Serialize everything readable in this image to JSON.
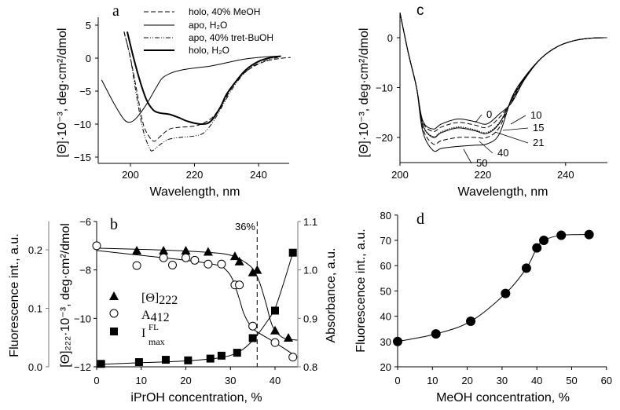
{
  "chart_data": [
    {
      "panel": "a",
      "type": "line",
      "xlabel": "Wavelength, nm",
      "ylabel": "[Θ]·10⁻³, deg·cm²/dmol",
      "xlim": [
        190,
        250
      ],
      "ylim": [
        -16,
        5
      ],
      "xticks": [
        "200",
        "220",
        "240"
      ],
      "yticks": [
        "5",
        "0",
        "−5",
        "−10",
        "−15"
      ],
      "series": [
        {
          "name": "holo, 40% MeOH",
          "style": "dashed",
          "points": [
            [
              198,
              4
            ],
            [
              200,
              0
            ],
            [
              202,
              -5
            ],
            [
              204,
              -10
            ],
            [
              206,
              -12
            ],
            [
              207.5,
              -12.6
            ],
            [
              209,
              -12
            ],
            [
              212,
              -10.8
            ],
            [
              215,
              -10.5
            ],
            [
              220,
              -10.3
            ],
            [
              223,
              -9.8
            ],
            [
              226,
              -8.8
            ],
            [
              229,
              -6.7
            ],
            [
              232,
              -4.2
            ],
            [
              235,
              -2.5
            ],
            [
              238,
              -1.4
            ],
            [
              242,
              -0.5
            ],
            [
              246,
              -0.1
            ],
            [
              250,
              0.1
            ]
          ]
        },
        {
          "name": "apo, H₂O",
          "style": "thin",
          "points": [
            [
              191,
              -3.3
            ],
            [
              195,
              -7
            ],
            [
              198,
              -9.3
            ],
            [
              200,
              -9.7
            ],
            [
              202,
              -9
            ],
            [
              205,
              -7
            ],
            [
              208,
              -4.5
            ],
            [
              210,
              -3
            ],
            [
              213,
              -2.2
            ],
            [
              216,
              -1.8
            ],
            [
              220,
              -1.5
            ],
            [
              225,
              -1.2
            ],
            [
              230,
              -0.7
            ],
            [
              235,
              -0.2
            ],
            [
              240,
              0.1
            ],
            [
              246,
              0.3
            ]
          ]
        },
        {
          "name": "apo, 40% tret-BuOH",
          "style": "dashdotdot",
          "points": [
            [
              198,
              4
            ],
            [
              200,
              0
            ],
            [
              202,
              -6
            ],
            [
              204,
              -11
            ],
            [
              206,
              -13.7
            ],
            [
              207,
              -14
            ],
            [
              209,
              -13.2
            ],
            [
              212,
              -12.3
            ],
            [
              216,
              -12
            ],
            [
              220,
              -11.8
            ],
            [
              223,
              -11.3
            ],
            [
              226,
              -9.5
            ],
            [
              229,
              -7
            ],
            [
              232,
              -4.5
            ],
            [
              235,
              -2.6
            ],
            [
              238,
              -1.3
            ],
            [
              242,
              -0.4
            ],
            [
              246,
              0.1
            ]
          ]
        },
        {
          "name": "holo, H₂O",
          "style": "thick",
          "points": [
            [
              199,
              4
            ],
            [
              201,
              0
            ],
            [
              203,
              -3.5
            ],
            [
              205,
              -6.3
            ],
            [
              207,
              -7.8
            ],
            [
              209,
              -8.3
            ],
            [
              212,
              -8.5
            ],
            [
              215,
              -9
            ],
            [
              218,
              -9.6
            ],
            [
              222,
              -10
            ],
            [
              225,
              -9.6
            ],
            [
              228,
              -7.5
            ],
            [
              230,
              -5.5
            ],
            [
              233,
              -3.5
            ],
            [
              236,
              -1.8
            ],
            [
              240,
              -0.5
            ],
            [
              244,
              0.1
            ],
            [
              247,
              0.3
            ]
          ]
        }
      ]
    },
    {
      "panel": "b",
      "type": "scatter",
      "xlabel": "iPrOH concentration, %",
      "ylabel_left_outer": "Fluorescence int., a.u.",
      "ylabel_left": "[Θ]₂₂₂·10⁻³, deg·cm²/dmol",
      "ylabel_right": "Absorbance, a.u.",
      "xlim": [
        0,
        45
      ],
      "ylim_left": [
        -12,
        -6
      ],
      "ylim_right": [
        0.8,
        1.1
      ],
      "ylim_left_outer": [
        0,
        0.25
      ],
      "xticks": [
        "0",
        "10",
        "20",
        "30",
        "40"
      ],
      "yticks_left": [
        "−6",
        "−8",
        "−10",
        "−12"
      ],
      "yticks_right": [
        "1.1",
        "1.0",
        "0.9",
        "0.8"
      ],
      "yticks_left_outer": [
        "0.2",
        "0.1",
        "0.0"
      ],
      "annotation": {
        "label": "36%",
        "x": 36
      },
      "legend": [
        {
          "base": "[Θ]",
          "sub": "222",
          "sup": "",
          "marker": "triangle"
        },
        {
          "base": "A",
          "sub": "412",
          "sup": "",
          "marker": "circle"
        },
        {
          "base": "I",
          "sub": "max",
          "sup": "FL",
          "marker": "square"
        }
      ],
      "series": [
        {
          "key": "theta222",
          "axis": "left",
          "marker": "triangle",
          "points": [
            [
              9,
              -7.2
            ],
            [
              15,
              -7.2
            ],
            [
              20,
              -7.2
            ],
            [
              25,
              -7.25
            ],
            [
              31,
              -7.43
            ],
            [
              32,
              -7.65
            ],
            [
              35,
              -8.1
            ],
            [
              36,
              -8.0
            ],
            [
              40,
              -10.5
            ],
            [
              43,
              -10.8
            ]
          ],
          "fit": [
            [
              0,
              -7.1
            ],
            [
              10,
              -7.15
            ],
            [
              20,
              -7.22
            ],
            [
              28,
              -7.32
            ],
            [
              31,
              -7.45
            ],
            [
              33,
              -7.65
            ],
            [
              35,
              -7.95
            ],
            [
              36.5,
              -8.5
            ],
            [
              38,
              -9.4
            ],
            [
              39,
              -10.1
            ],
            [
              40,
              -10.5
            ],
            [
              42,
              -10.82
            ],
            [
              45,
              -10.9
            ]
          ]
        },
        {
          "key": "A412",
          "axis": "right",
          "marker": "circle",
          "points": [
            [
              0,
              1.05
            ],
            [
              9,
              1.009
            ],
            [
              15,
              1.025
            ],
            [
              17,
              1.01
            ],
            [
              20,
              1.025
            ],
            [
              22,
              1.02
            ],
            [
              25,
              1.012
            ],
            [
              28,
              1.012
            ],
            [
              31,
              0.969
            ],
            [
              32,
              0.969
            ],
            [
              35,
              0.884
            ],
            [
              40,
              0.85
            ],
            [
              44,
              0.82
            ]
          ],
          "fit": [
            [
              0,
              1.04
            ],
            [
              10,
              1.03
            ],
            [
              20,
              1.02
            ],
            [
              27,
              1.01
            ],
            [
              29,
              1.0
            ],
            [
              30.5,
              0.98
            ],
            [
              32,
              0.94
            ],
            [
              33,
              0.91
            ],
            [
              34.5,
              0.885
            ],
            [
              36,
              0.872
            ],
            [
              40,
              0.85
            ],
            [
              45,
              0.82
            ]
          ]
        },
        {
          "key": "IFLmax",
          "axis": "left_outer",
          "marker": "square",
          "points": [
            [
              1,
              0.005
            ],
            [
              9.5,
              0.008
            ],
            [
              15.5,
              0.012
            ],
            [
              20.5,
              0.011
            ],
            [
              25.5,
              0.014
            ],
            [
              28,
              0.019
            ],
            [
              31.5,
              0.024
            ],
            [
              35,
              0.049
            ],
            [
              40,
              0.096
            ],
            [
              44,
              0.195
            ]
          ],
          "fit": [
            [
              0,
              0.004
            ],
            [
              10,
              0.007
            ],
            [
              20,
              0.01
            ],
            [
              28,
              0.016
            ],
            [
              32,
              0.026
            ],
            [
              35,
              0.045
            ],
            [
              38,
              0.075
            ],
            [
              40,
              0.1
            ],
            [
              42,
              0.145
            ],
            [
              44,
              0.195
            ]
          ]
        }
      ]
    },
    {
      "panel": "c",
      "type": "line",
      "xlabel": "Wavelength, nm",
      "ylabel": "[Θ]·10⁻³, deg·cm²/dmol",
      "xlim": [
        200,
        250
      ],
      "ylim": [
        -25,
        5
      ],
      "xticks": [
        "200",
        "220",
        "240"
      ],
      "yticks": [
        "0",
        "−10",
        "−20"
      ],
      "series": [
        {
          "name": "0",
          "style": "solid",
          "min1": -18.3,
          "hump": -16.3,
          "min2": -17.3
        },
        {
          "name": "10",
          "style": "dashed",
          "min1": -18.8,
          "hump": -17.0,
          "min2": -18.0
        },
        {
          "name": "15",
          "style": "dotted",
          "min1": -19.8,
          "hump": -17.9,
          "min2": -19.0
        },
        {
          "name": "21",
          "style": "solid",
          "min1": -20.0,
          "hump": -18.1,
          "min2": -19.2
        },
        {
          "name": "40",
          "style": "dashed",
          "min1": -21.3,
          "hump": -20.0,
          "min2": -20.0
        },
        {
          "name": "50",
          "style": "solid",
          "min1": -22.6,
          "hump": -21.8,
          "min2": -21.3
        }
      ]
    },
    {
      "panel": "d",
      "type": "scatter",
      "xlabel": "MeOH concentration, %",
      "ylabel": "Fluorescence int., a.u.",
      "xlim": [
        0,
        60
      ],
      "ylim": [
        20,
        80
      ],
      "xticks": [
        "0",
        "10",
        "20",
        "30",
        "40",
        "50",
        "60"
      ],
      "yticks": [
        "80",
        "70",
        "60",
        "50",
        "40",
        "30",
        "20"
      ],
      "points": [
        [
          0,
          30
        ],
        [
          11,
          33
        ],
        [
          21,
          38
        ],
        [
          31,
          49
        ],
        [
          37,
          59
        ],
        [
          40,
          67
        ],
        [
          42,
          70
        ],
        [
          47,
          72
        ],
        [
          55,
          72.3
        ]
      ]
    }
  ]
}
